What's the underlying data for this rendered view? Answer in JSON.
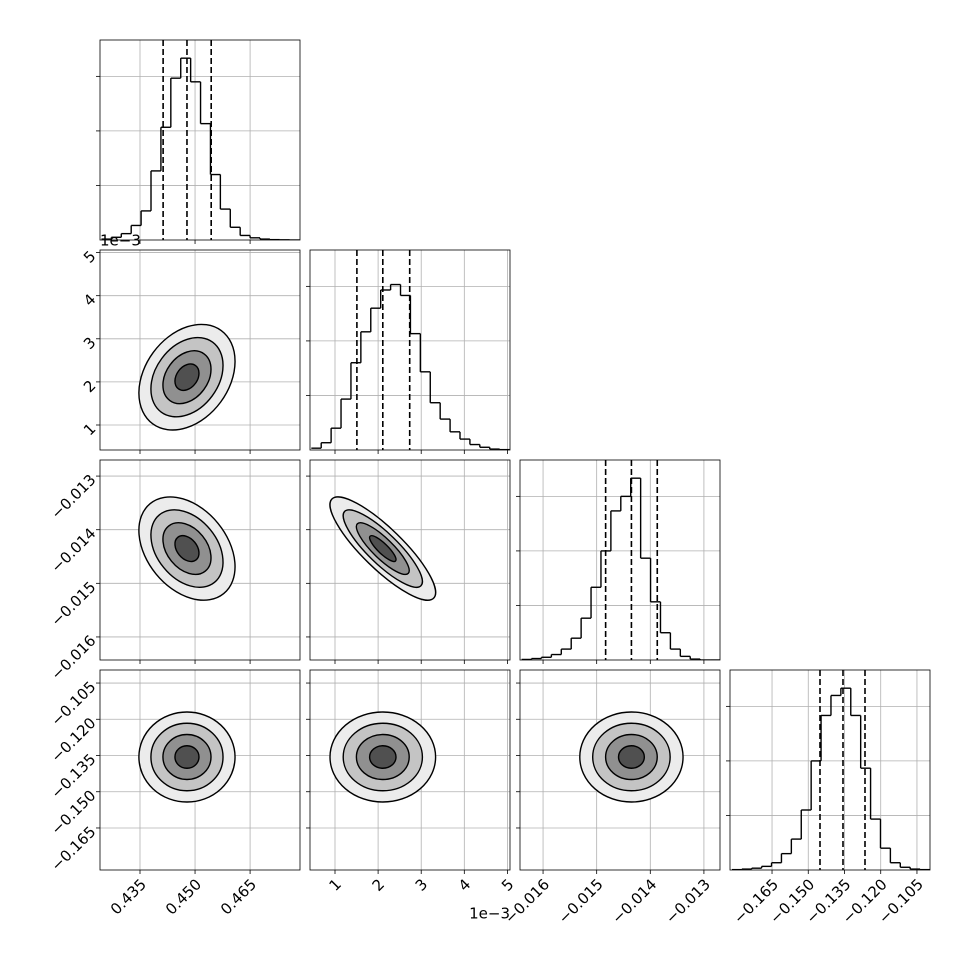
{
  "chart_data": {
    "type": "corner",
    "grid": true,
    "hist_ylim": [
      0,
      1100
    ],
    "hist_yticks": [
      300,
      600,
      900
    ],
    "contour_levels": [
      0.5,
      1,
      1.5,
      2
    ],
    "params": [
      {
        "lim": [
          0.4241,
          0.4786
        ],
        "ticks": [
          0.435,
          {
            "value": 0.45,
            "label": "0.450"
          },
          0.465
        ],
        "quantiles": [
          0.4413,
          0.4478,
          0.4544
        ],
        "bins": [
          0.4245,
          0.4272,
          0.4299,
          0.4326,
          0.4353,
          0.438,
          0.4407,
          0.4434,
          0.4461,
          0.4488,
          0.4515,
          0.4542,
          0.4569,
          0.4596,
          0.4623,
          0.465,
          0.4677,
          0.4704,
          0.4731,
          0.4758,
          0.4785
        ],
        "counts": [
          5,
          15,
          35,
          80,
          160,
          380,
          620,
          890,
          1000,
          870,
          640,
          360,
          170,
          70,
          25,
          12,
          5,
          2,
          1,
          0
        ]
      },
      {
        "lim": [
          0.00042,
          0.00506
        ],
        "ticks": [
          {
            "value": 0.001,
            "label": "1"
          },
          {
            "value": 0.002,
            "label": "2"
          },
          {
            "value": 0.003,
            "label": "3"
          },
          {
            "value": 0.004,
            "label": "4"
          },
          {
            "value": 0.005,
            "label": "5"
          }
        ],
        "offset_text": "1e−3",
        "quantiles": [
          0.001508,
          0.002109,
          0.002733
        ],
        "bins": [
          0.00045,
          0.00068,
          0.00091,
          0.00114,
          0.00137,
          0.0016,
          0.00183,
          0.00206,
          0.00229,
          0.00252,
          0.00275,
          0.00298,
          0.00321,
          0.00344,
          0.00367,
          0.0039,
          0.00413,
          0.00436,
          0.00459,
          0.00482,
          0.00505
        ],
        "counts": [
          10,
          40,
          120,
          280,
          480,
          650,
          780,
          880,
          910,
          850,
          640,
          430,
          260,
          170,
          100,
          60,
          30,
          15,
          5,
          2
        ]
      },
      {
        "lim": [
          -0.01643,
          -0.0127
        ],
        "ticks": [
          {
            "value": -0.016,
            "label": "−0.016"
          },
          {
            "value": -0.015,
            "label": "−0.015"
          },
          {
            "value": -0.014,
            "label": "−0.014"
          },
          {
            "value": -0.013,
            "label": "−0.013"
          }
        ],
        "quantiles": [
          -0.014833,
          -0.014352,
          -0.01387
        ],
        "bins": [
          -0.0164,
          -0.016215,
          -0.01603,
          -0.015845,
          -0.01566,
          -0.015475,
          -0.01529,
          -0.015105,
          -0.01492,
          -0.014735,
          -0.01455,
          -0.014365,
          -0.01418,
          -0.013995,
          -0.01381,
          -0.013625,
          -0.01344,
          -0.013255,
          -0.01307,
          -0.012885,
          -0.0127
        ],
        "counts": [
          3,
          8,
          15,
          30,
          60,
          120,
          230,
          400,
          600,
          820,
          900,
          1000,
          560,
          320,
          150,
          60,
          20,
          5,
          0,
          0
        ]
      },
      {
        "lim": [
          -0.1824,
          -0.0996
        ],
        "ticks": [
          {
            "value": -0.165,
            "label": "−0.165"
          },
          {
            "value": -0.15,
            "label": "−0.150"
          },
          {
            "value": -0.135,
            "label": "−0.135"
          },
          {
            "value": -0.12,
            "label": "−0.120"
          },
          {
            "value": -0.105,
            "label": "−0.105"
          }
        ],
        "quantiles": [
          -0.14514,
          -0.13562,
          -0.12651
        ],
        "bins": [
          -0.1816,
          -0.1775,
          -0.1734,
          -0.1693,
          -0.1652,
          -0.1611,
          -0.157,
          -0.1529,
          -0.1488,
          -0.1447,
          -0.1406,
          -0.1365,
          -0.1324,
          -0.1283,
          -0.1242,
          -0.1201,
          -0.116,
          -0.1119,
          -0.1078,
          -0.1037,
          -0.0996
        ],
        "counts": [
          2,
          5,
          10,
          20,
          40,
          90,
          170,
          330,
          600,
          850,
          960,
          1000,
          850,
          560,
          280,
          120,
          40,
          15,
          5,
          2
        ]
      }
    ],
    "pairs": [
      {
        "x": 0,
        "y": 1,
        "rho": 0.3
      },
      {
        "x": 0,
        "y": 2,
        "rho": -0.35
      },
      {
        "x": 1,
        "y": 2,
        "rho": -0.85
      },
      {
        "x": 0,
        "y": 3,
        "rho": 0
      },
      {
        "x": 1,
        "y": 3,
        "rho": 0
      },
      {
        "x": 2,
        "y": 3,
        "rho": 0
      }
    ]
  }
}
